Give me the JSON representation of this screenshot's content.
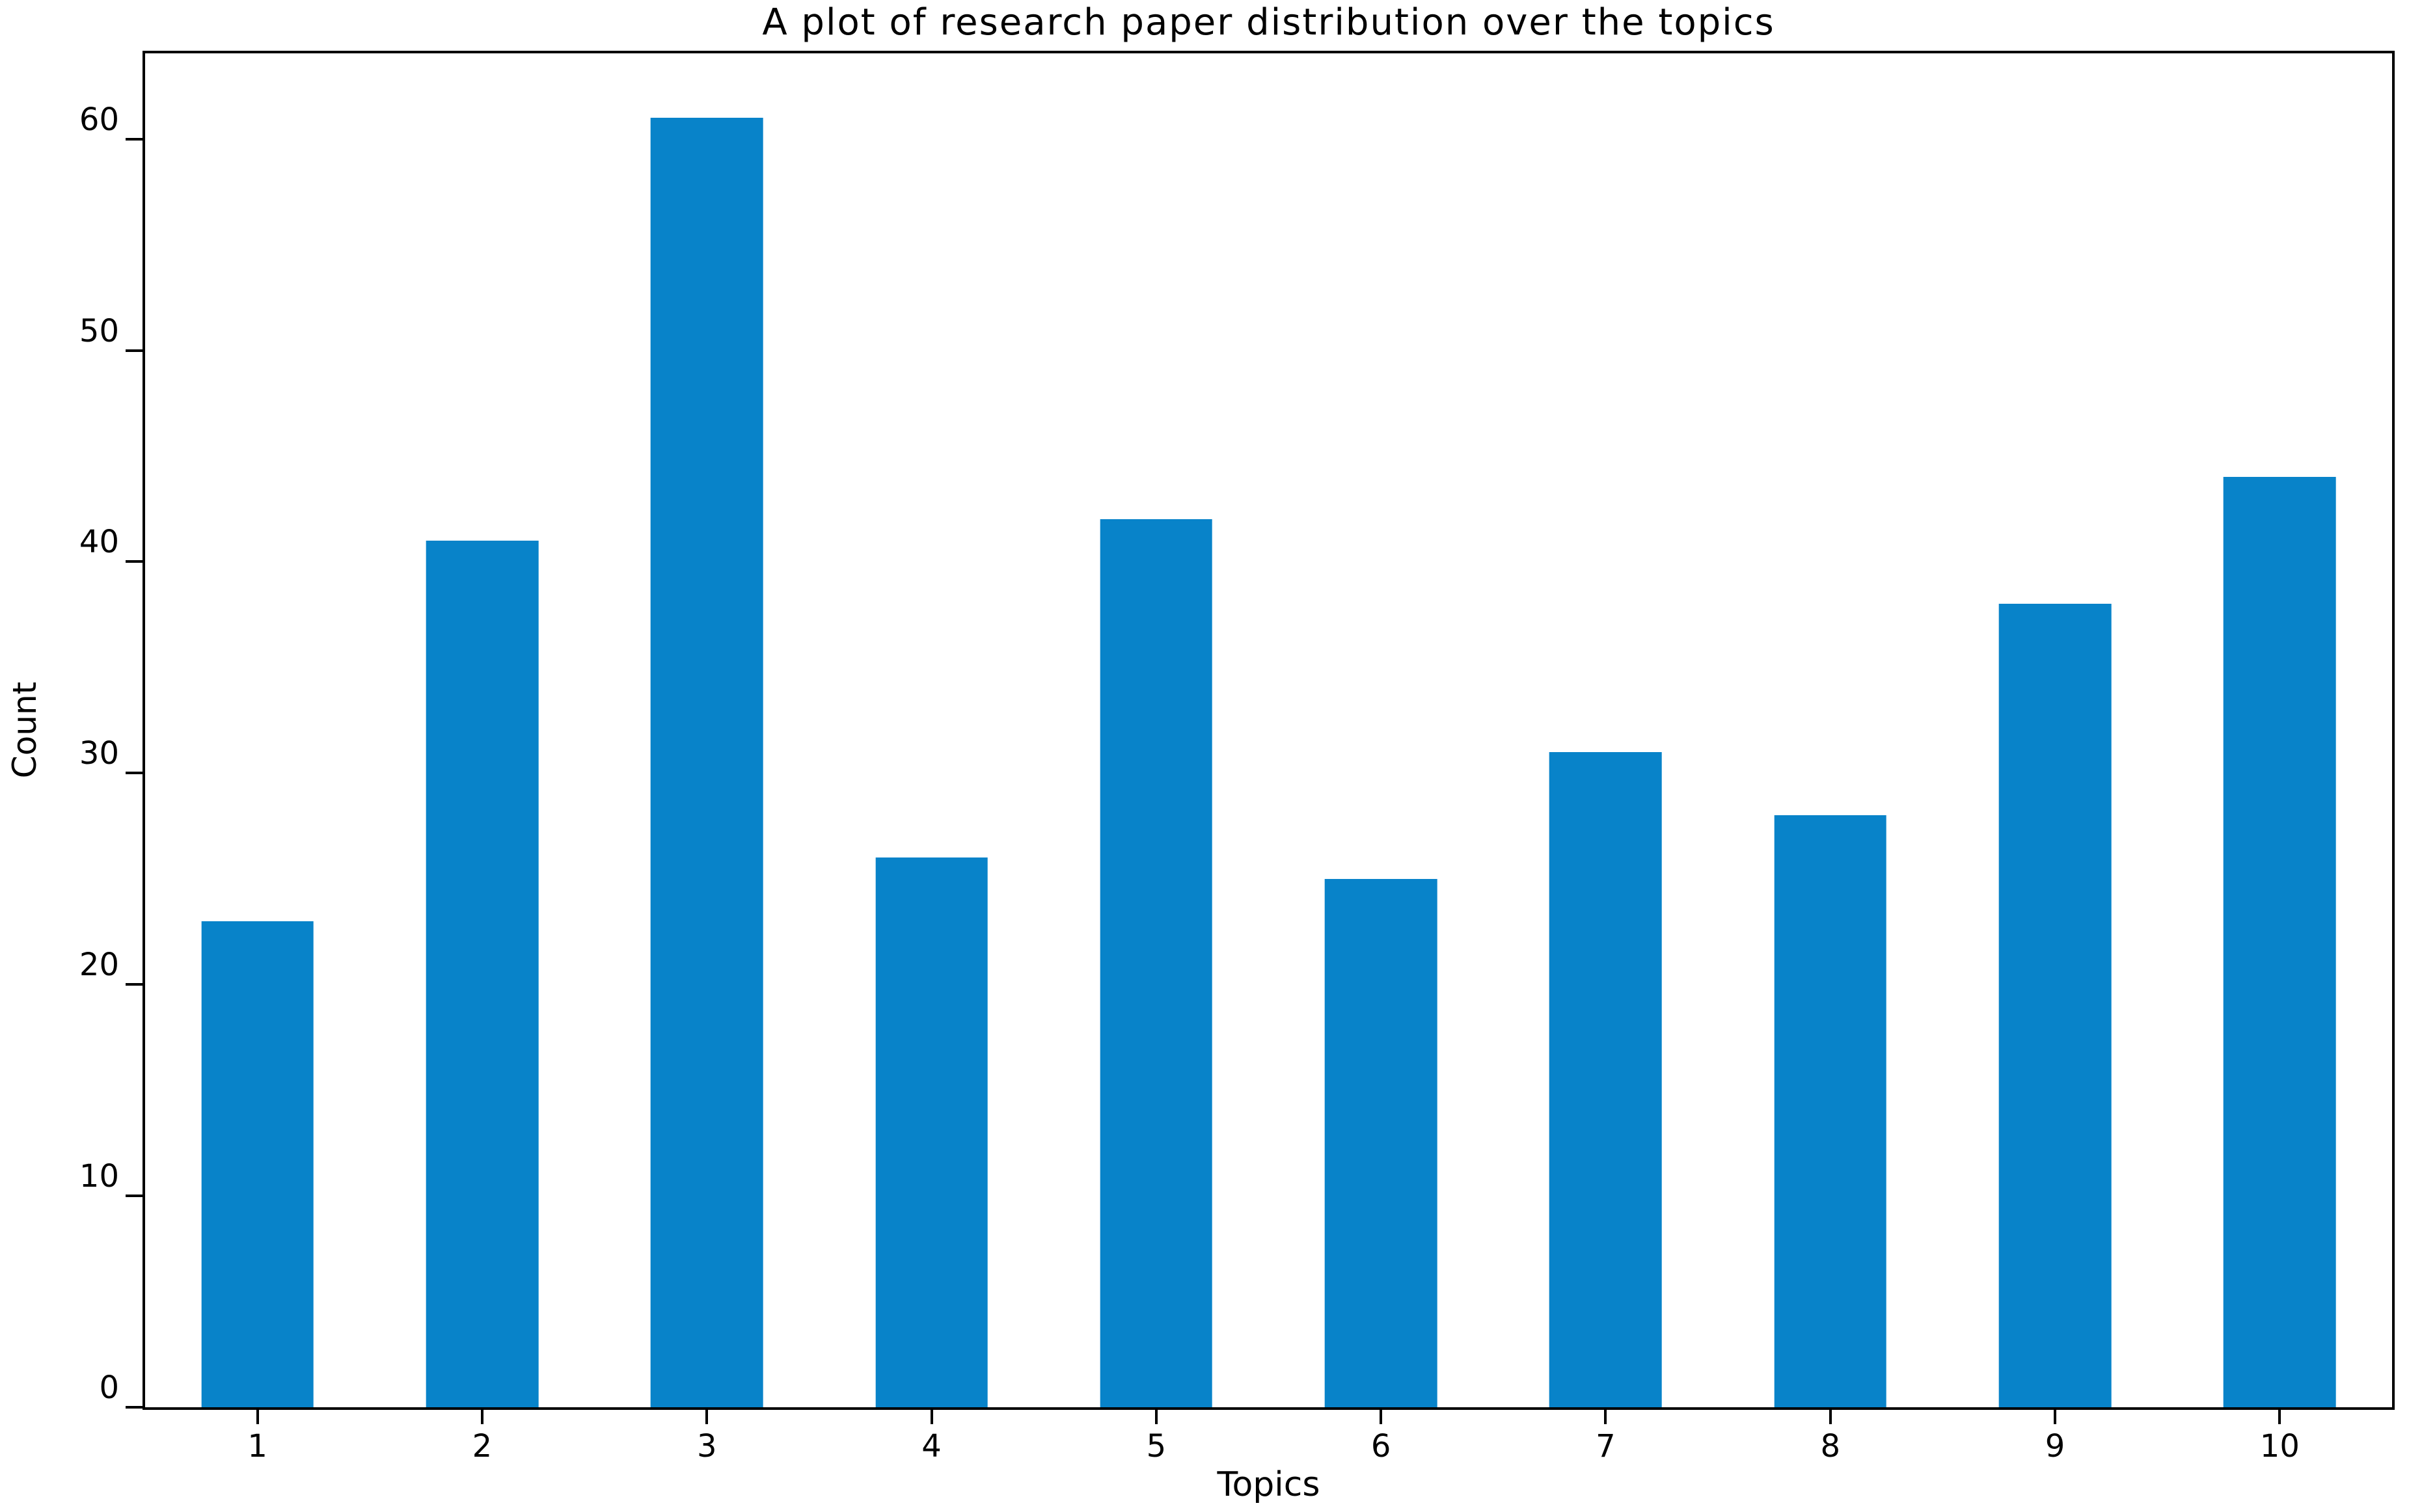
{
  "chart_data": {
    "type": "bar",
    "title": "A plot of research paper distribution over the topics",
    "xlabel": "Topics",
    "ylabel": "Count",
    "categories": [
      "1",
      "2",
      "3",
      "4",
      "5",
      "6",
      "7",
      "8",
      "9",
      "10"
    ],
    "values": [
      23,
      41,
      61,
      26,
      42,
      25,
      31,
      28,
      38,
      44
    ],
    "yticks": [
      0,
      10,
      20,
      30,
      40,
      50,
      60
    ],
    "ylim": [
      0,
      64.05
    ],
    "xlim_categories": "bars centered on ticks 1-10",
    "bar_color": "#0883c9",
    "spine_color": "#000000",
    "background_color": "#ffffff",
    "grid": false,
    "legend": "none"
  }
}
